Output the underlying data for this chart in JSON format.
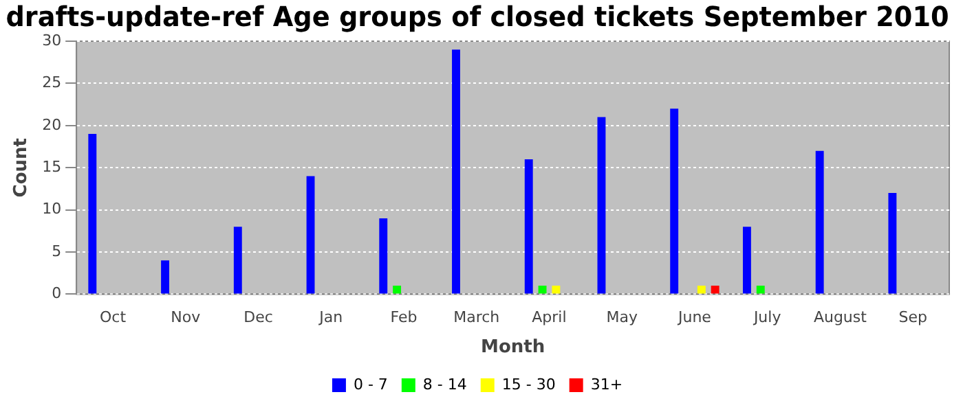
{
  "chart_data": {
    "type": "bar",
    "title": "drafts-update-ref Age groups of closed tickets September 2010",
    "xlabel": "Month",
    "ylabel": "Count",
    "categories": [
      "Oct",
      "Nov",
      "Dec",
      "Jan",
      "Feb",
      "March",
      "April",
      "May",
      "June",
      "July",
      "August",
      "Sep"
    ],
    "series": [
      {
        "name": "0 - 7",
        "color": "#0000ff",
        "values": [
          19,
          4,
          8,
          14,
          9,
          29,
          16,
          21,
          22,
          8,
          17,
          12
        ]
      },
      {
        "name": "8 - 14",
        "color": "#00ff00",
        "values": [
          0,
          0,
          0,
          0,
          1,
          0,
          1,
          0,
          0,
          1,
          0,
          0
        ]
      },
      {
        "name": "15 - 30",
        "color": "#ffff00",
        "values": [
          0,
          0,
          0,
          0,
          0,
          0,
          1,
          0,
          1,
          0,
          0,
          0
        ]
      },
      {
        "name": "31+",
        "color": "#ff0000",
        "values": [
          0,
          0,
          0,
          0,
          0,
          0,
          0,
          0,
          1,
          0,
          0,
          0
        ]
      }
    ],
    "ylim": [
      0,
      30
    ],
    "yticks": [
      0,
      5,
      10,
      15,
      20,
      25,
      30
    ],
    "grid": "y",
    "legend": "bottom"
  }
}
